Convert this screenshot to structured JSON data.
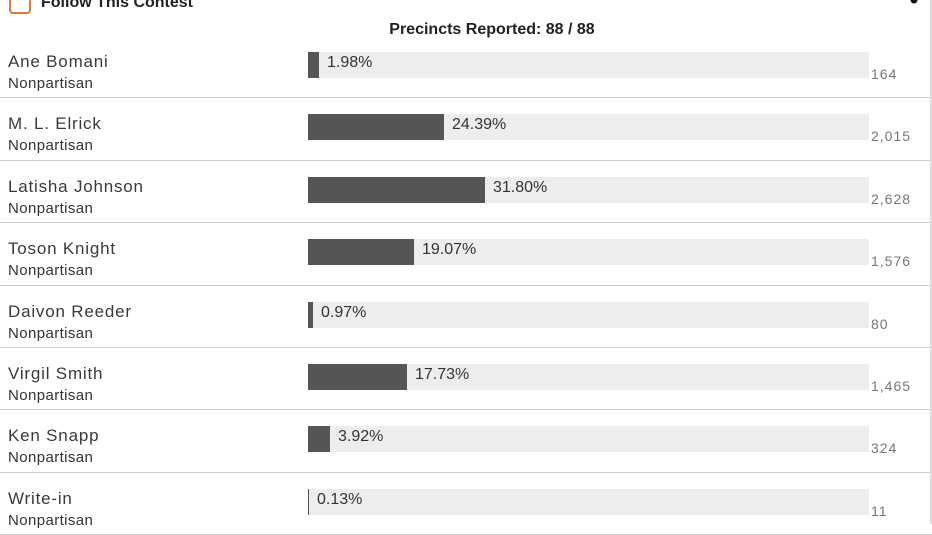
{
  "header": {
    "follow_label": "Follow This Contest",
    "precincts": "Precincts Reported: 88 / 88"
  },
  "colors": {
    "checkbox_border": "#e07b39",
    "bar_fill": "#555555",
    "bar_track": "#ededed"
  },
  "candidates": [
    {
      "name": "Ane Bomani",
      "party": "Nonpartisan",
      "percent_label": "1.98%",
      "percent": 1.98,
      "votes": "164"
    },
    {
      "name": "M. L. Elrick",
      "party": "Nonpartisan",
      "percent_label": "24.39%",
      "percent": 24.39,
      "votes": "2,015"
    },
    {
      "name": "Latisha Johnson",
      "party": "Nonpartisan",
      "percent_label": "31.80%",
      "percent": 31.8,
      "votes": "2,628"
    },
    {
      "name": "Toson Knight",
      "party": "Nonpartisan",
      "percent_label": "19.07%",
      "percent": 19.07,
      "votes": "1,576"
    },
    {
      "name": "Daivon Reeder",
      "party": "Nonpartisan",
      "percent_label": "0.97%",
      "percent": 0.97,
      "votes": "80"
    },
    {
      "name": "Virgil Smith",
      "party": "Nonpartisan",
      "percent_label": "17.73%",
      "percent": 17.73,
      "votes": "1,465"
    },
    {
      "name": "Ken Snapp",
      "party": "Nonpartisan",
      "percent_label": "3.92%",
      "percent": 3.92,
      "votes": "324"
    },
    {
      "name": "Write-in",
      "party": "Nonpartisan",
      "percent_label": "0.13%",
      "percent": 0.13,
      "votes": "11"
    }
  ]
}
